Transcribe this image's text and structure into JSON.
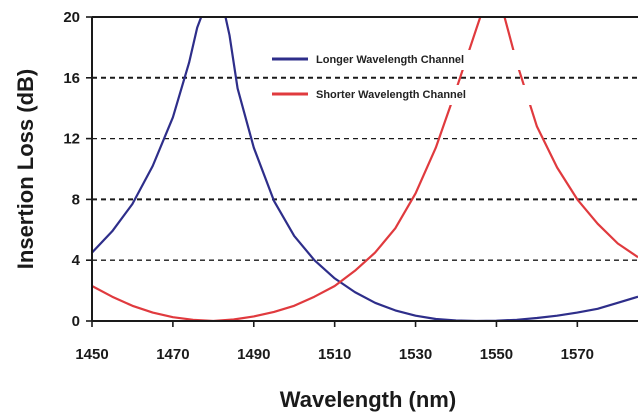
{
  "chart_data": {
    "type": "line",
    "xlabel": "Wavelength (nm)",
    "ylabel": "Insertion Loss (dB)",
    "xlim": [
      1450,
      1585
    ],
    "ylim": [
      0,
      20
    ],
    "x_ticks": [
      1450,
      1470,
      1490,
      1510,
      1530,
      1550,
      1570
    ],
    "y_ticks": [
      0,
      4,
      8,
      12,
      16,
      20
    ],
    "x_tick_labels": [
      "1450",
      "1470",
      "1490",
      "1510",
      "1530",
      "1550",
      "1570"
    ],
    "y_tick_labels": [
      "0",
      "4",
      "8",
      "12",
      "16",
      "20"
    ],
    "grid": "horizontal dashed lines at 4, 8, 12, 16 dB",
    "legend_position": "top-center",
    "series": [
      {
        "name": "Longer Wavelength Channel",
        "color": "#2e2e8a",
        "x": [
          1450,
          1455,
          1460,
          1465,
          1470,
          1474,
          1476,
          1477,
          1483,
          1484,
          1486,
          1490,
          1495,
          1500,
          1505,
          1510,
          1515,
          1520,
          1525,
          1530,
          1535,
          1540,
          1545,
          1550,
          1555,
          1560,
          1565,
          1570,
          1575,
          1580,
          1585
        ],
        "y": [
          4.5,
          5.9,
          7.7,
          10.2,
          13.4,
          17.0,
          19.3,
          20.0,
          20.0,
          18.8,
          15.3,
          11.4,
          7.9,
          5.6,
          4.0,
          2.8,
          1.9,
          1.2,
          0.7,
          0.35,
          0.13,
          0.03,
          0.0,
          0.02,
          0.08,
          0.2,
          0.35,
          0.55,
          0.8,
          1.2,
          1.6
        ]
      },
      {
        "name": "Shorter Wavelength Channel",
        "color": "#e03a3e",
        "x": [
          1450,
          1455,
          1460,
          1465,
          1470,
          1475,
          1480,
          1485,
          1490,
          1495,
          1500,
          1505,
          1510,
          1515,
          1520,
          1525,
          1530,
          1535,
          1540,
          1545,
          1546,
          1552,
          1553,
          1555,
          1560,
          1565,
          1570,
          1575,
          1580,
          1585
        ],
        "y": [
          2.3,
          1.6,
          1.0,
          0.55,
          0.25,
          0.08,
          0.0,
          0.1,
          0.3,
          0.6,
          1.0,
          1.6,
          2.3,
          3.3,
          4.5,
          6.1,
          8.4,
          11.4,
          15.2,
          19.2,
          20.0,
          20.0,
          19.0,
          17.0,
          12.8,
          10.1,
          8.0,
          6.4,
          5.1,
          4.2
        ]
      }
    ]
  }
}
